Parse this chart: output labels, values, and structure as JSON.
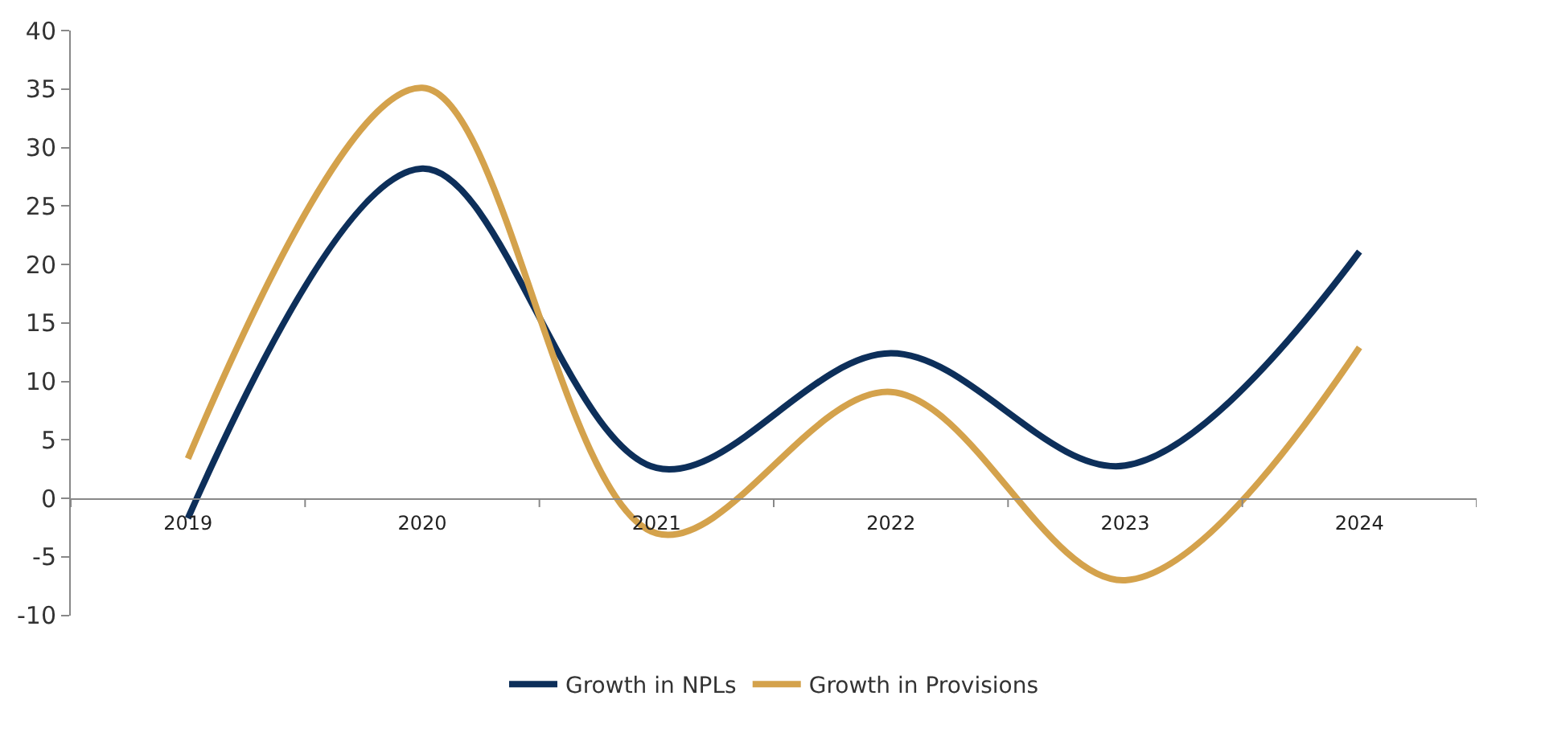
{
  "chart_data": {
    "type": "line",
    "categories": [
      "2019",
      "2020",
      "2021",
      "2022",
      "2023",
      "2024"
    ],
    "series": [
      {
        "name": "Growth in NPLs",
        "color": "#0d2f5a",
        "values": [
          -1.7,
          28.2,
          2.6,
          12.4,
          2.8,
          21.1
        ]
      },
      {
        "name": "Growth in Provisions",
        "color": "#d4a24c",
        "values": [
          3.4,
          35.1,
          -3.0,
          9.1,
          -7.0,
          12.9
        ]
      }
    ],
    "ylim": [
      -10,
      40
    ],
    "yticks": [
      -10,
      -5,
      0,
      5,
      10,
      15,
      20,
      25,
      30,
      35,
      40
    ],
    "legend": "bottom",
    "marker": "none",
    "line_style": "solid"
  }
}
